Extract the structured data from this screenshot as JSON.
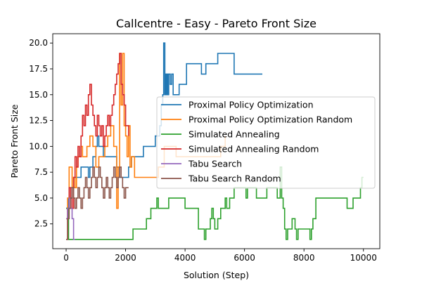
{
  "chart_data": {
    "type": "line",
    "title": "Callcentre - Easy - Pareto Front Size",
    "xlabel": "Solution (Step)",
    "ylabel": "Pareto Front Size",
    "xlim": [
      -450,
      10550
    ],
    "ylim": [
      0.1,
      20.9
    ],
    "xticks": [
      0,
      2000,
      4000,
      6000,
      8000,
      10000
    ],
    "yticks": [
      2.5,
      5.0,
      7.5,
      10.0,
      12.5,
      15.0,
      17.5,
      20.0
    ],
    "xtick_labels": [
      "0",
      "2000",
      "4000",
      "6000",
      "8000",
      "10000"
    ],
    "ytick_labels": [
      "2.5",
      "5.0",
      "7.5",
      "10.0",
      "12.5",
      "15.0",
      "17.5",
      "20.0"
    ],
    "grid": false,
    "legend_position": "center-right",
    "series": [
      {
        "name": "Proximal Policy Optimization",
        "color": "#1f77b4",
        "points": [
          [
            0,
            4
          ],
          [
            80,
            5
          ],
          [
            150,
            6
          ],
          [
            250,
            6
          ],
          [
            300,
            7
          ],
          [
            450,
            7
          ],
          [
            500,
            8
          ],
          [
            700,
            8
          ],
          [
            750,
            7
          ],
          [
            800,
            8
          ],
          [
            900,
            9
          ],
          [
            1000,
            10
          ],
          [
            1050,
            11
          ],
          [
            1100,
            10
          ],
          [
            1250,
            9
          ],
          [
            1400,
            9
          ],
          [
            1500,
            9
          ],
          [
            1600,
            9
          ],
          [
            1700,
            8
          ],
          [
            1800,
            7
          ],
          [
            2000,
            7
          ],
          [
            2100,
            8
          ],
          [
            2200,
            9
          ],
          [
            2400,
            9
          ],
          [
            2600,
            10
          ],
          [
            2800,
            10
          ],
          [
            3000,
            11
          ],
          [
            3150,
            12
          ],
          [
            3200,
            14
          ],
          [
            3250,
            15
          ],
          [
            3280,
            20
          ],
          [
            3320,
            15
          ],
          [
            3350,
            17
          ],
          [
            3380,
            15
          ],
          [
            3400,
            17
          ],
          [
            3420,
            15
          ],
          [
            3450,
            17
          ],
          [
            3500,
            16
          ],
          [
            3550,
            17
          ],
          [
            3600,
            15
          ],
          [
            3700,
            15
          ],
          [
            3800,
            16
          ],
          [
            4000,
            16
          ],
          [
            4050,
            18
          ],
          [
            4500,
            18
          ],
          [
            4550,
            17
          ],
          [
            4650,
            17
          ],
          [
            4700,
            18
          ],
          [
            5000,
            18
          ],
          [
            5100,
            19
          ],
          [
            5600,
            19
          ],
          [
            5650,
            17
          ],
          [
            6600,
            17
          ]
        ]
      },
      {
        "name": "Proximal Policy Optimization Random",
        "color": "#ff7f0e",
        "points": [
          [
            0,
            3
          ],
          [
            50,
            5
          ],
          [
            100,
            8
          ],
          [
            150,
            8
          ],
          [
            200,
            6
          ],
          [
            250,
            7
          ],
          [
            300,
            6
          ],
          [
            350,
            8
          ],
          [
            400,
            9
          ],
          [
            450,
            9
          ],
          [
            500,
            10
          ],
          [
            550,
            9
          ],
          [
            600,
            9
          ],
          [
            700,
            10
          ],
          [
            800,
            11
          ],
          [
            900,
            10
          ],
          [
            1000,
            8
          ],
          [
            1100,
            9
          ],
          [
            1200,
            9
          ],
          [
            1300,
            10
          ],
          [
            1400,
            11
          ],
          [
            1500,
            12
          ],
          [
            1600,
            10
          ],
          [
            1700,
            4
          ],
          [
            1750,
            8
          ],
          [
            1800,
            19
          ],
          [
            1850,
            14
          ],
          [
            1900,
            19
          ],
          [
            1950,
            12
          ],
          [
            2000,
            11
          ],
          [
            2050,
            9
          ],
          [
            2100,
            12
          ],
          [
            2150,
            8
          ],
          [
            2200,
            9
          ],
          [
            2300,
            7
          ],
          [
            3000,
            7
          ],
          [
            3100,
            8
          ],
          [
            3200,
            8
          ],
          [
            3300,
            10
          ],
          [
            3500,
            10
          ],
          [
            3700,
            9
          ],
          [
            4000,
            9
          ],
          [
            4500,
            9
          ],
          [
            5000,
            9
          ],
          [
            5200,
            10
          ],
          [
            5350,
            11
          ]
        ]
      },
      {
        "name": "Simulated Annealing",
        "color": "#2ca02c",
        "points": [
          [
            0,
            4
          ],
          [
            50,
            4
          ],
          [
            80,
            1
          ],
          [
            200,
            1
          ],
          [
            400,
            1
          ],
          [
            1000,
            1
          ],
          [
            1500,
            1
          ],
          [
            2000,
            1
          ],
          [
            2200,
            1
          ],
          [
            2250,
            2
          ],
          [
            2600,
            2
          ],
          [
            2700,
            3
          ],
          [
            2800,
            3
          ],
          [
            2850,
            4
          ],
          [
            3000,
            4
          ],
          [
            3050,
            5
          ],
          [
            3100,
            4
          ],
          [
            3400,
            4
          ],
          [
            3450,
            5
          ],
          [
            3950,
            5
          ],
          [
            4000,
            4
          ],
          [
            4400,
            4
          ],
          [
            4450,
            2
          ],
          [
            4600,
            2
          ],
          [
            4650,
            1
          ],
          [
            4700,
            2
          ],
          [
            4800,
            2
          ],
          [
            4850,
            3
          ],
          [
            4900,
            4
          ],
          [
            4950,
            3
          ],
          [
            5000,
            2
          ],
          [
            5100,
            3
          ],
          [
            5200,
            4
          ],
          [
            5300,
            4
          ],
          [
            5350,
            5
          ],
          [
            5400,
            4
          ],
          [
            5500,
            5
          ],
          [
            5600,
            5
          ],
          [
            5650,
            6
          ],
          [
            6000,
            6
          ],
          [
            6050,
            5
          ],
          [
            6100,
            6
          ],
          [
            6300,
            6
          ],
          [
            6400,
            5
          ],
          [
            6700,
            5
          ],
          [
            6750,
            6
          ],
          [
            7000,
            6
          ],
          [
            7100,
            5
          ],
          [
            7200,
            8
          ],
          [
            7250,
            5
          ],
          [
            7300,
            4
          ],
          [
            7350,
            2
          ],
          [
            7400,
            1
          ],
          [
            7450,
            2
          ],
          [
            7550,
            2
          ],
          [
            7600,
            3
          ],
          [
            7700,
            2
          ],
          [
            7750,
            1
          ],
          [
            7800,
            2
          ],
          [
            7900,
            2
          ],
          [
            8000,
            2
          ],
          [
            8100,
            2
          ],
          [
            8200,
            1
          ],
          [
            8250,
            2
          ],
          [
            8300,
            3
          ],
          [
            8400,
            5
          ],
          [
            9400,
            5
          ],
          [
            9450,
            4
          ],
          [
            9600,
            4
          ],
          [
            9650,
            5
          ],
          [
            9850,
            5
          ],
          [
            9900,
            6
          ],
          [
            9950,
            7
          ],
          [
            10000,
            7
          ]
        ]
      },
      {
        "name": "Simulated Annealing Random",
        "color": "#d62728",
        "points": [
          [
            0,
            1
          ],
          [
            50,
            4
          ],
          [
            100,
            6
          ],
          [
            150,
            5
          ],
          [
            200,
            4
          ],
          [
            250,
            7
          ],
          [
            300,
            9
          ],
          [
            350,
            8
          ],
          [
            400,
            10
          ],
          [
            450,
            9
          ],
          [
            500,
            11
          ],
          [
            550,
            13
          ],
          [
            600,
            12
          ],
          [
            650,
            14
          ],
          [
            700,
            13
          ],
          [
            750,
            15
          ],
          [
            800,
            16
          ],
          [
            850,
            14
          ],
          [
            900,
            13
          ],
          [
            950,
            12
          ],
          [
            1000,
            11
          ],
          [
            1050,
            13
          ],
          [
            1100,
            12
          ],
          [
            1150,
            11
          ],
          [
            1200,
            12
          ],
          [
            1250,
            10
          ],
          [
            1300,
            11
          ],
          [
            1350,
            12
          ],
          [
            1400,
            13
          ],
          [
            1450,
            12
          ],
          [
            1500,
            13
          ],
          [
            1550,
            14
          ],
          [
            1600,
            15
          ],
          [
            1650,
            16
          ],
          [
            1700,
            17
          ],
          [
            1750,
            18
          ],
          [
            1800,
            19
          ],
          [
            1850,
            16
          ],
          [
            1900,
            15
          ],
          [
            1950,
            14
          ],
          [
            2000,
            12
          ],
          [
            2100,
            11
          ]
        ]
      },
      {
        "name": "Tabu Search",
        "color": "#9467bd",
        "points": [
          [
            0,
            3
          ],
          [
            50,
            4
          ],
          [
            100,
            5
          ],
          [
            150,
            4
          ],
          [
            200,
            3
          ],
          [
            250,
            1
          ],
          [
            300,
            1
          ]
        ]
      },
      {
        "name": "Tabu Search Random",
        "color": "#8c564b",
        "points": [
          [
            0,
            1
          ],
          [
            50,
            3
          ],
          [
            100,
            4
          ],
          [
            150,
            5
          ],
          [
            200,
            6
          ],
          [
            250,
            5
          ],
          [
            300,
            4
          ],
          [
            350,
            5
          ],
          [
            400,
            6
          ],
          [
            450,
            5
          ],
          [
            500,
            4
          ],
          [
            550,
            5
          ],
          [
            600,
            6
          ],
          [
            650,
            7
          ],
          [
            700,
            6
          ],
          [
            750,
            5
          ],
          [
            800,
            6
          ],
          [
            850,
            7
          ],
          [
            900,
            8
          ],
          [
            950,
            7
          ],
          [
            1000,
            6
          ],
          [
            1050,
            7
          ],
          [
            1100,
            8
          ],
          [
            1150,
            7
          ],
          [
            1200,
            6
          ],
          [
            1250,
            5
          ],
          [
            1300,
            6
          ],
          [
            1350,
            7
          ],
          [
            1400,
            6
          ],
          [
            1450,
            5
          ],
          [
            1500,
            6
          ],
          [
            1550,
            7
          ],
          [
            1600,
            8
          ],
          [
            1650,
            7
          ],
          [
            1700,
            6
          ],
          [
            1750,
            7
          ],
          [
            1800,
            8
          ],
          [
            1850,
            7
          ],
          [
            1900,
            6
          ],
          [
            1950,
            5
          ],
          [
            2000,
            6
          ],
          [
            2100,
            6
          ]
        ]
      }
    ]
  }
}
